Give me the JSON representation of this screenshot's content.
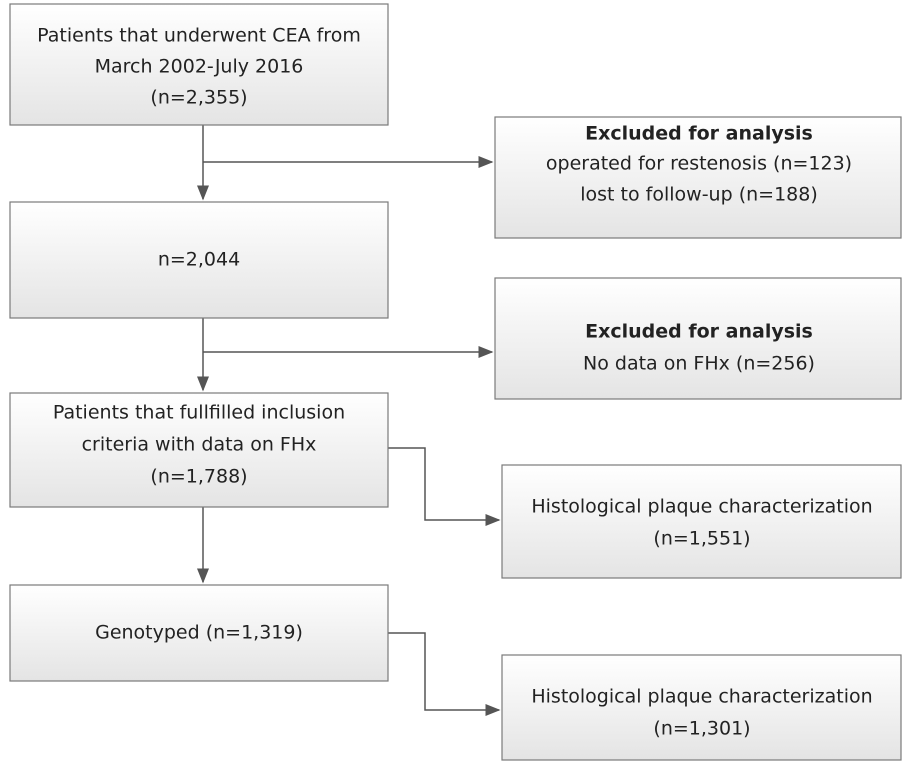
{
  "nodes": [
    {
      "lines": [
        "Patients that underwent CEA from",
        "March 2002-July 2016",
        "(n=2,355)"
      ]
    },
    {
      "heading": "Excluded for analysis",
      "lines": [
        "operated for restenosis (n=123)",
        "lost to follow-up (n=188)"
      ]
    },
    {
      "lines": [
        "n=2,044"
      ]
    },
    {
      "heading": "Excluded for analysis",
      "lines": [
        "No data on FHx (n=256)"
      ]
    },
    {
      "lines": [
        "Patients that fullfilled inclusion",
        "criteria with data on FHx",
        "(n=1,788)"
      ]
    },
    {
      "lines": [
        "Histological plaque characterization",
        "(n=1,551)"
      ]
    },
    {
      "lines": [
        "Genotyped (n=1,319)"
      ]
    },
    {
      "lines": [
        "Histological plaque characterization",
        "(n=1,301)"
      ]
    }
  ]
}
